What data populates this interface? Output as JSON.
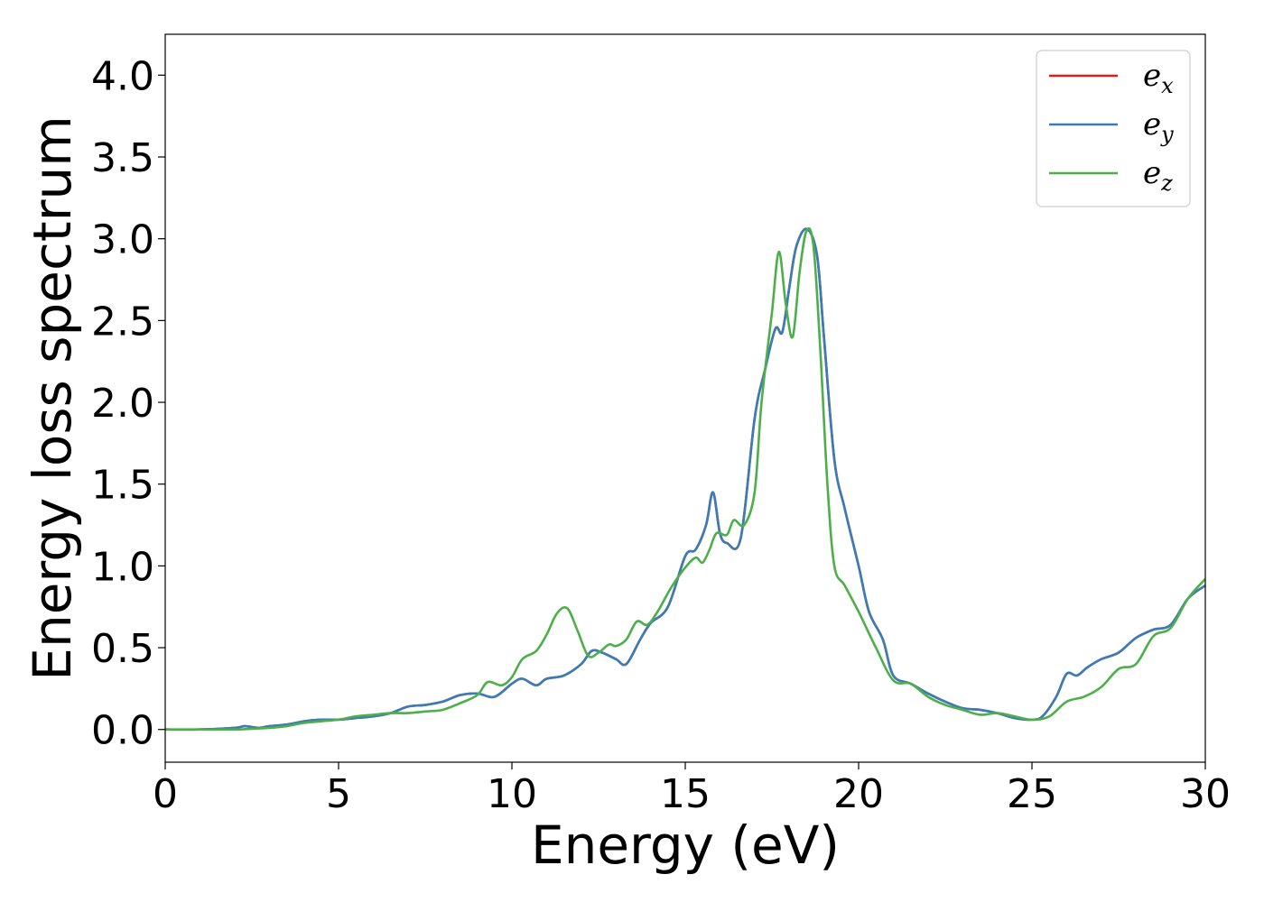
{
  "chart_data": {
    "type": "line",
    "title": "",
    "xlabel": "Energy (eV)",
    "ylabel": "Energy loss spectrum",
    "xlim": [
      0,
      30
    ],
    "ylim": [
      -0.2,
      4.25
    ],
    "xticks": [
      "0",
      "5",
      "10",
      "15",
      "20",
      "25",
      "30"
    ],
    "yticks": [
      "0.0",
      "0.5",
      "1.0",
      "1.5",
      "2.0",
      "2.5",
      "3.0",
      "3.5",
      "4.0"
    ],
    "legend": {
      "placement": "top-right"
    },
    "grid": false,
    "series": [
      {
        "name": "e_x",
        "legend_base": "e",
        "legend_sub": "x",
        "color": "#e41a1c",
        "x": [
          0,
          1,
          2,
          2.3,
          2.7,
          3,
          3.5,
          4,
          4.5,
          5,
          5.5,
          6,
          6.5,
          7,
          7.5,
          8,
          8.5,
          9,
          9.5,
          10,
          10.3,
          10.7,
          11,
          11.5,
          12,
          12.3,
          12.6,
          13,
          13.3,
          13.7,
          14,
          14.5,
          15,
          15.3,
          15.6,
          15.8,
          16,
          16.2,
          16.6,
          17,
          17.3,
          17.6,
          17.8,
          18,
          18.2,
          18.5,
          18.8,
          19,
          19.3,
          19.6,
          20,
          20.3,
          20.7,
          21,
          21.5,
          22,
          22.5,
          23,
          23.5,
          24,
          24.5,
          25,
          25.3,
          25.7,
          26,
          26.3,
          26.6,
          27,
          27.5,
          28,
          28.5,
          29,
          29.5,
          30
        ],
        "y": [
          0,
          0,
          0.01,
          0.02,
          0.01,
          0.02,
          0.03,
          0.05,
          0.06,
          0.06,
          0.07,
          0.08,
          0.1,
          0.14,
          0.15,
          0.17,
          0.21,
          0.22,
          0.2,
          0.28,
          0.31,
          0.27,
          0.31,
          0.33,
          0.4,
          0.48,
          0.47,
          0.43,
          0.4,
          0.55,
          0.65,
          0.75,
          1.06,
          1.1,
          1.25,
          1.45,
          1.2,
          1.14,
          1.17,
          1.9,
          2.2,
          2.45,
          2.43,
          2.7,
          2.95,
          3.06,
          2.9,
          2.4,
          1.65,
          1.35,
          1.0,
          0.72,
          0.55,
          0.33,
          0.28,
          0.22,
          0.17,
          0.13,
          0.12,
          0.1,
          0.07,
          0.06,
          0.08,
          0.2,
          0.34,
          0.33,
          0.38,
          0.43,
          0.47,
          0.56,
          0.61,
          0.64,
          0.8,
          0.88
        ]
      },
      {
        "name": "e_y",
        "legend_base": "e",
        "legend_sub": "y",
        "color": "#377eb8",
        "x": [
          0,
          1,
          2,
          2.3,
          2.7,
          3,
          3.5,
          4,
          4.5,
          5,
          5.5,
          6,
          6.5,
          7,
          7.5,
          8,
          8.5,
          9,
          9.5,
          10,
          10.3,
          10.7,
          11,
          11.5,
          12,
          12.3,
          12.6,
          13,
          13.3,
          13.7,
          14,
          14.5,
          15,
          15.3,
          15.6,
          15.8,
          16,
          16.2,
          16.6,
          17,
          17.3,
          17.6,
          17.8,
          18,
          18.2,
          18.5,
          18.8,
          19,
          19.3,
          19.6,
          20,
          20.3,
          20.7,
          21,
          21.5,
          22,
          22.5,
          23,
          23.5,
          24,
          24.5,
          25,
          25.3,
          25.7,
          26,
          26.3,
          26.6,
          27,
          27.5,
          28,
          28.5,
          29,
          29.5,
          30
        ],
        "y": [
          0,
          0,
          0.01,
          0.02,
          0.01,
          0.02,
          0.03,
          0.05,
          0.06,
          0.06,
          0.07,
          0.08,
          0.1,
          0.14,
          0.15,
          0.17,
          0.21,
          0.22,
          0.2,
          0.28,
          0.31,
          0.27,
          0.31,
          0.33,
          0.4,
          0.48,
          0.47,
          0.43,
          0.4,
          0.55,
          0.65,
          0.75,
          1.06,
          1.1,
          1.25,
          1.45,
          1.2,
          1.14,
          1.17,
          1.9,
          2.2,
          2.45,
          2.43,
          2.7,
          2.95,
          3.06,
          2.9,
          2.4,
          1.65,
          1.35,
          1.0,
          0.72,
          0.55,
          0.33,
          0.28,
          0.22,
          0.17,
          0.13,
          0.12,
          0.1,
          0.07,
          0.06,
          0.08,
          0.2,
          0.34,
          0.33,
          0.38,
          0.43,
          0.47,
          0.56,
          0.61,
          0.64,
          0.8,
          0.88
        ]
      },
      {
        "name": "e_z",
        "legend_base": "e",
        "legend_sub": "z",
        "color": "#4daf4a",
        "x": [
          0,
          1,
          2,
          3,
          3.5,
          4,
          4.5,
          5,
          5.5,
          6,
          6.5,
          7,
          7.5,
          8,
          8.5,
          9,
          9.3,
          9.7,
          10,
          10.3,
          10.7,
          11,
          11.3,
          11.6,
          11.9,
          12.2,
          12.5,
          12.8,
          13,
          13.3,
          13.6,
          13.9,
          14.2,
          14.6,
          15,
          15.3,
          15.5,
          15.7,
          15.9,
          16.2,
          16.4,
          16.7,
          17,
          17.2,
          17.5,
          17.7,
          17.9,
          18.1,
          18.3,
          18.5,
          18.7,
          18.9,
          19.1,
          19.3,
          19.6,
          20,
          20.5,
          21,
          21.5,
          22,
          22.5,
          23,
          23.5,
          24,
          24.5,
          25,
          25.5,
          26,
          26.5,
          27,
          27.5,
          28,
          28.5,
          29,
          29.5,
          30
        ],
        "y": [
          0,
          0,
          0,
          0.01,
          0.02,
          0.04,
          0.05,
          0.06,
          0.08,
          0.09,
          0.1,
          0.1,
          0.11,
          0.12,
          0.16,
          0.21,
          0.29,
          0.27,
          0.32,
          0.43,
          0.48,
          0.58,
          0.71,
          0.74,
          0.6,
          0.45,
          0.47,
          0.52,
          0.51,
          0.55,
          0.66,
          0.64,
          0.72,
          0.87,
          0.99,
          1.05,
          1.02,
          1.1,
          1.2,
          1.19,
          1.28,
          1.25,
          1.45,
          2.0,
          2.55,
          2.92,
          2.6,
          2.4,
          2.8,
          3.05,
          2.95,
          2.3,
          1.5,
          1.0,
          0.88,
          0.72,
          0.5,
          0.3,
          0.28,
          0.2,
          0.15,
          0.12,
          0.09,
          0.1,
          0.08,
          0.06,
          0.08,
          0.17,
          0.2,
          0.26,
          0.37,
          0.4,
          0.57,
          0.62,
          0.8,
          0.92
        ]
      }
    ]
  }
}
